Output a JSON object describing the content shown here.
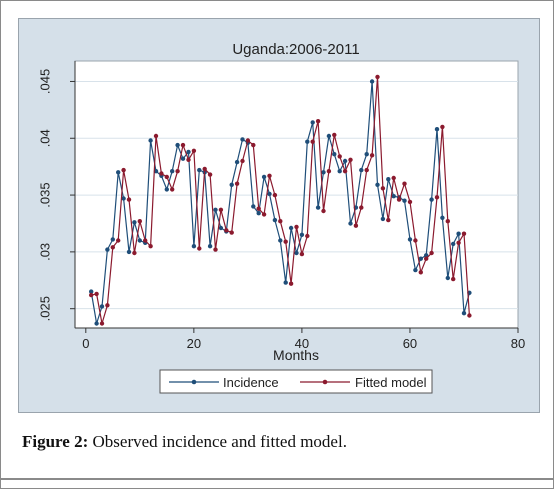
{
  "figure": {
    "caption_label": "Figure 2:",
    "caption_text": " Observed incidence and fitted model."
  },
  "chart_data": {
    "type": "line",
    "title": "Uganda:2006-2011",
    "xlabel": "Months",
    "ylabel": "",
    "xlim": [
      -2,
      80
    ],
    "ylim": [
      0.0233,
      0.0468
    ],
    "xticks": [
      0,
      20,
      40,
      60,
      80
    ],
    "xtick_labels": [
      "0",
      "20",
      "40",
      "60",
      "80"
    ],
    "yticks": [
      0.025,
      0.03,
      0.035,
      0.04,
      0.045
    ],
    "ytick_labels": [
      ".025",
      ".03",
      ".035",
      ".04",
      ".045"
    ],
    "grid": "horizontal",
    "legend_position": "bottom",
    "colors": {
      "panel": "#d5e0e9",
      "plot": "#ffffff",
      "grid": "#d8e2ea",
      "incidence": "#1f4e79",
      "fitted": "#8b1a2e"
    },
    "series": [
      {
        "name": "Incidence",
        "x": [
          1,
          2,
          3,
          4,
          5,
          6,
          7,
          8,
          9,
          10,
          11,
          12,
          13,
          14,
          15,
          16,
          17,
          18,
          19,
          20,
          21,
          22,
          23,
          24,
          25,
          26,
          27,
          28,
          29,
          30,
          31,
          32,
          33,
          34,
          35,
          36,
          37,
          38,
          39,
          40,
          41,
          42,
          43,
          44,
          45,
          46,
          47,
          48,
          49,
          50,
          51,
          52,
          53,
          54,
          55,
          56,
          57,
          58,
          59,
          60,
          61,
          62,
          63,
          64,
          65,
          66,
          67,
          68,
          69,
          70,
          71
        ],
        "values": [
          0.0265,
          0.0237,
          0.0252,
          0.0302,
          0.0311,
          0.037,
          0.0347,
          0.03,
          0.0326,
          0.031,
          0.0308,
          0.0398,
          0.0371,
          0.0367,
          0.0355,
          0.0371,
          0.0394,
          0.0382,
          0.0388,
          0.0305,
          0.0372,
          0.037,
          0.0305,
          0.0337,
          0.0321,
          0.0318,
          0.0359,
          0.0379,
          0.0399,
          0.0396,
          0.034,
          0.0334,
          0.0366,
          0.0351,
          0.0328,
          0.031,
          0.0273,
          0.0321,
          0.0299,
          0.0315,
          0.0397,
          0.0414,
          0.0339,
          0.037,
          0.0402,
          0.0386,
          0.0371,
          0.038,
          0.0325,
          0.0339,
          0.0372,
          0.0386,
          0.045,
          0.0359,
          0.0329,
          0.0364,
          0.0349,
          0.0348,
          0.0345,
          0.0311,
          0.0284,
          0.0294,
          0.0297,
          0.0346,
          0.0408,
          0.033,
          0.0277,
          0.0307,
          0.0316,
          0.0246,
          0.0264
        ]
      },
      {
        "name": "Fitted model",
        "x": [
          1,
          2,
          3,
          4,
          5,
          6,
          7,
          8,
          9,
          10,
          11,
          12,
          13,
          14,
          15,
          16,
          17,
          18,
          19,
          20,
          21,
          22,
          23,
          24,
          25,
          26,
          27,
          28,
          29,
          30,
          31,
          32,
          33,
          34,
          35,
          36,
          37,
          38,
          39,
          40,
          41,
          42,
          43,
          44,
          45,
          46,
          47,
          48,
          49,
          50,
          51,
          52,
          53,
          54,
          55,
          56,
          57,
          58,
          59,
          60,
          61,
          62,
          63,
          64,
          65,
          66,
          67,
          68,
          69,
          70,
          71
        ],
        "values": [
          0.0262,
          0.0263,
          0.0237,
          0.0253,
          0.0304,
          0.031,
          0.0372,
          0.0346,
          0.0299,
          0.0327,
          0.031,
          0.0305,
          0.0402,
          0.0369,
          0.0366,
          0.0355,
          0.0371,
          0.0394,
          0.0381,
          0.0389,
          0.0303,
          0.0373,
          0.0368,
          0.0302,
          0.0337,
          0.0319,
          0.0317,
          0.036,
          0.038,
          0.0398,
          0.0394,
          0.0338,
          0.0333,
          0.0367,
          0.035,
          0.0327,
          0.0309,
          0.0272,
          0.0322,
          0.0298,
          0.0314,
          0.0397,
          0.0415,
          0.0336,
          0.0371,
          0.0403,
          0.0384,
          0.0371,
          0.0381,
          0.0323,
          0.0339,
          0.0372,
          0.0385,
          0.0454,
          0.0356,
          0.0328,
          0.0365,
          0.0346,
          0.036,
          0.0344,
          0.031,
          0.0282,
          0.0294,
          0.0299,
          0.0348,
          0.041,
          0.0327,
          0.0276,
          0.0308,
          0.0316,
          0.0244
        ]
      }
    ]
  }
}
